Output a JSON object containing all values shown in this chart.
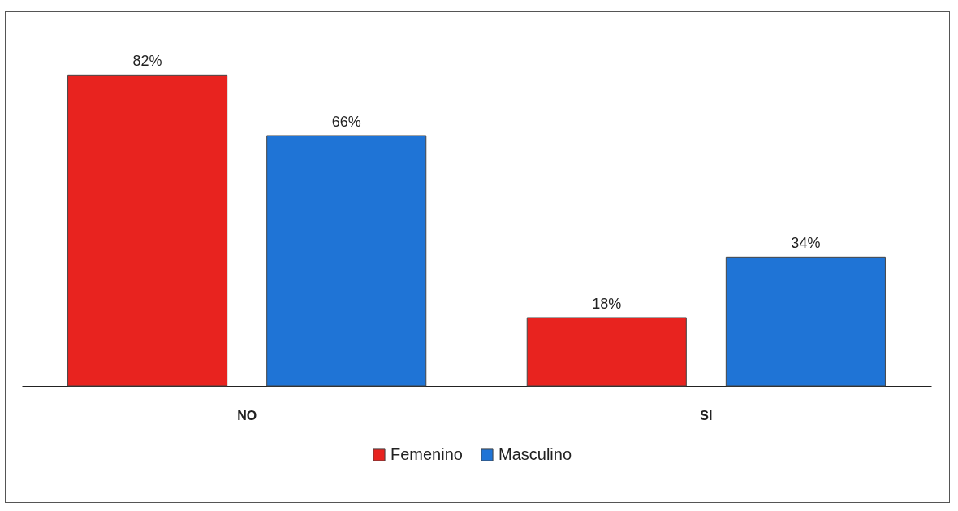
{
  "chart_data": {
    "type": "bar",
    "categories": [
      "NO",
      "SI"
    ],
    "series": [
      {
        "name": "Femenino",
        "color": "#e8231f",
        "values": [
          82,
          18
        ],
        "value_labels": [
          "82%",
          "18%"
        ]
      },
      {
        "name": "Masculino",
        "color": "#1f74d6",
        "values": [
          66,
          34
        ],
        "value_labels": [
          "66%",
          "34%"
        ]
      }
    ],
    "legend": "bottom",
    "tick_labels": "x"
  }
}
